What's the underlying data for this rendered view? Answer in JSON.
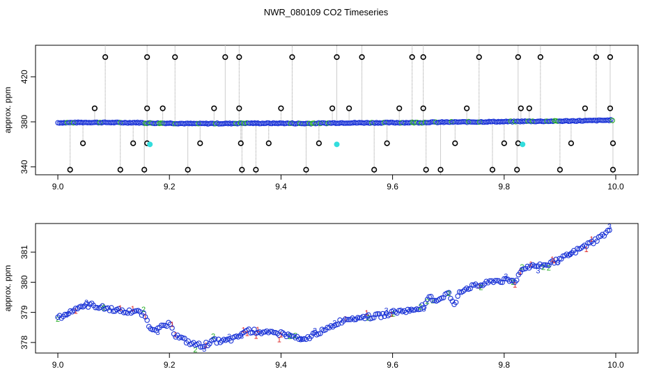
{
  "figure": {
    "title": "NWR_080109  CO2 Timeseries"
  },
  "chart_data": [
    {
      "type": "scatter",
      "title": "NWR_080109  CO2 Timeseries",
      "xlabel": "",
      "ylabel": "approx. ppm",
      "xlim": [
        8.96,
        10.04
      ],
      "ylim": [
        333,
        448
      ],
      "x_ticks": [
        9.0,
        9.2,
        9.4,
        9.6,
        9.8,
        10.0
      ],
      "x_tick_labels": [
        "9.0",
        "9.2",
        "9.4",
        "9.6",
        "9.8",
        "10.0"
      ],
      "y_ticks": [
        340,
        380,
        420
      ],
      "y_tick_labels": [
        "340",
        "380",
        "420"
      ],
      "grid": false,
      "colors": {
        "main": "#1a33d6",
        "aux": "#22aa22",
        "outlier": "#000000",
        "flag": "#33dddd",
        "dropline": "#999999"
      },
      "series": [
        {
          "x": [
            9.0,
            9.02,
            9.04,
            9.06,
            9.08,
            9.1,
            9.12,
            9.14,
            9.16,
            9.165,
            9.18,
            9.2,
            9.22,
            9.24,
            9.26,
            9.28,
            9.3,
            9.32,
            9.33,
            9.34,
            9.36,
            9.38,
            9.4,
            9.42,
            9.44,
            9.46,
            9.48,
            9.5,
            9.52,
            9.54,
            9.56,
            9.58,
            9.6,
            9.62,
            9.64,
            9.66,
            9.665,
            9.68,
            9.7,
            9.72,
            9.74,
            9.76,
            9.78,
            9.8,
            9.82,
            9.83,
            9.835,
            9.86,
            9.88,
            9.9,
            9.92,
            9.94,
            9.96,
            9.98,
            9.99
          ],
          "y": [
            378.9,
            379.0,
            379.2,
            379.3,
            379.2,
            379.1,
            379.0,
            379.1,
            378.6,
            378.5,
            378.4,
            378.4,
            378.1,
            377.9,
            377.9,
            378.1,
            378.0,
            378.2,
            378.4,
            378.4,
            378.3,
            378.3,
            378.3,
            378.2,
            378.0,
            378.3,
            378.4,
            378.7,
            378.8,
            378.8,
            378.9,
            378.9,
            379.0,
            379.0,
            379.1,
            379.2,
            379.5,
            379.4,
            379.6,
            379.7,
            379.8,
            379.9,
            380.1,
            380.1,
            380.2,
            380.4,
            380.5,
            380.5,
            380.6,
            380.7,
            380.9,
            381.1,
            381.3,
            381.6,
            381.8
          ]
        }
      ],
      "outliers_high_x": [
        9.085,
        9.16,
        9.21,
        9.3,
        9.325,
        9.42,
        9.5,
        9.545,
        9.635,
        9.655,
        9.755,
        9.825,
        9.865,
        9.965,
        9.99
      ],
      "outliers_mid_x": [
        9.066,
        9.16,
        9.188,
        9.28,
        9.325,
        9.4,
        9.492,
        9.522,
        9.612,
        9.655,
        9.733,
        9.83,
        9.845,
        9.945,
        9.99
      ],
      "outliers_low_x": [
        9.045,
        9.135,
        9.16,
        9.255,
        9.328,
        9.378,
        9.468,
        9.59,
        9.712,
        9.8,
        9.825,
        9.92,
        9.995
      ],
      "outliers_bottom_x": [
        9.022,
        9.112,
        9.155,
        9.233,
        9.33,
        9.355,
        9.445,
        9.567,
        9.66,
        9.686,
        9.779,
        9.823,
        9.9,
        9.995
      ],
      "flagged_points": {
        "x": [
          9.165,
          9.5,
          9.833
        ],
        "y": [
          360,
          360,
          360
        ]
      }
    },
    {
      "type": "scatter",
      "title": "",
      "xlabel": "",
      "ylabel": "approx. ppm",
      "xlim": [
        8.96,
        10.04
      ],
      "ylim": [
        377.65,
        381.95
      ],
      "x_ticks": [
        9.0,
        9.2,
        9.4,
        9.6,
        9.8,
        10.0
      ],
      "x_tick_labels": [
        "9.0",
        "9.2",
        "9.4",
        "9.6",
        "9.8",
        "10.0"
      ],
      "y_ticks": [
        378,
        379,
        380,
        381
      ],
      "y_tick_labels": [
        "378",
        "379",
        "380",
        "381"
      ],
      "grid": false,
      "marker_digits": [
        "1",
        "2",
        "3"
      ],
      "digit_colors": {
        "1": "#dd2222",
        "2": "#22aa22",
        "3": "#1a33d6"
      },
      "series": [
        {
          "x": [
            9.0,
            9.02,
            9.04,
            9.06,
            9.08,
            9.1,
            9.12,
            9.14,
            9.155,
            9.165,
            9.18,
            9.19,
            9.2,
            9.21,
            9.22,
            9.24,
            9.26,
            9.28,
            9.3,
            9.32,
            9.33,
            9.34,
            9.36,
            9.38,
            9.4,
            9.42,
            9.44,
            9.46,
            9.48,
            9.5,
            9.52,
            9.54,
            9.56,
            9.58,
            9.6,
            9.62,
            9.64,
            9.66,
            9.665,
            9.68,
            9.7,
            9.71,
            9.72,
            9.74,
            9.76,
            9.78,
            9.8,
            9.82,
            9.83,
            9.835,
            9.86,
            9.88,
            9.9,
            9.92,
            9.94,
            9.96,
            9.98,
            9.99
          ],
          "y": [
            378.8,
            379.0,
            379.2,
            379.25,
            379.15,
            379.1,
            379.0,
            379.05,
            378.9,
            378.5,
            378.45,
            378.55,
            378.6,
            378.25,
            378.15,
            377.95,
            377.9,
            378.05,
            378.05,
            378.15,
            378.3,
            378.4,
            378.35,
            378.3,
            378.3,
            378.2,
            378.05,
            378.3,
            378.4,
            378.65,
            378.8,
            378.85,
            378.85,
            378.9,
            379.0,
            379.05,
            379.1,
            379.25,
            379.5,
            379.4,
            379.65,
            379.2,
            379.7,
            379.85,
            379.9,
            380.05,
            380.05,
            380.05,
            380.35,
            380.5,
            380.55,
            380.6,
            380.75,
            380.95,
            381.15,
            381.35,
            381.6,
            381.75
          ]
        }
      ]
    }
  ]
}
